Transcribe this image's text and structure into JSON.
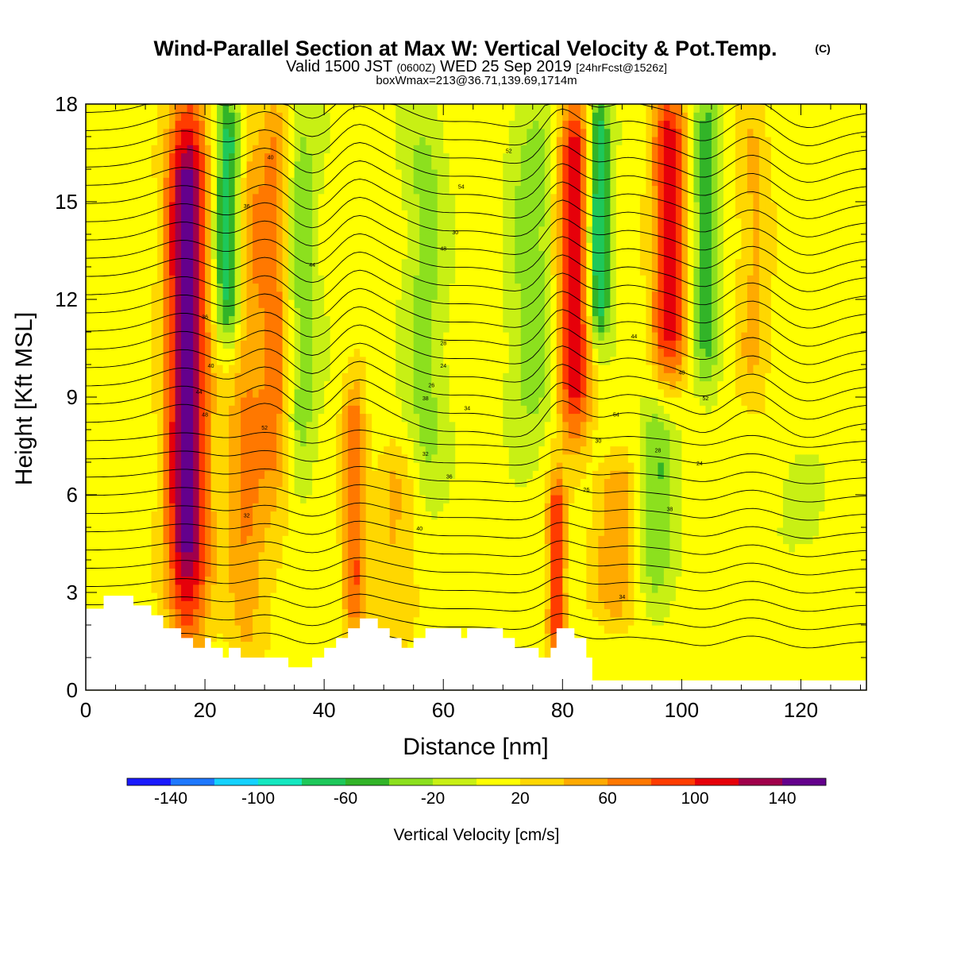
{
  "titles": {
    "main": "Wind-Parallel Section at Max W: Vertical Velocity & Pot.Temp.",
    "copyright": "(C)",
    "valid_prefix": "Valid 1500 JST",
    "valid_utc": "(0600Z)",
    "valid_date": "WED 25 Sep 2019",
    "forecast": "[24hrFcst@1526z]",
    "box": "boxWmax=213@36.71,139.69,1714m"
  },
  "chart_data": {
    "type": "heatmap",
    "xlabel": "Distance [nm]",
    "ylabel": "Height [Kft MSL]",
    "xlim": [
      0,
      131
    ],
    "ylim": [
      0,
      18
    ],
    "x_ticks": [
      "0",
      "20",
      "40",
      "60",
      "80",
      "100",
      "120"
    ],
    "y_ticks": [
      "0",
      "3",
      "6",
      "9",
      "12",
      "15",
      "18"
    ],
    "colorbar": {
      "label": "Vertical Velocity [cm/s]",
      "ticks": [
        "-140",
        "-100",
        "-60",
        "-20",
        "20",
        "60",
        "100",
        "140"
      ],
      "bounds": [
        -160,
        -140,
        -120,
        -100,
        -80,
        -60,
        -40,
        -20,
        0,
        20,
        40,
        60,
        80,
        100,
        120,
        140,
        160
      ],
      "colors": [
        "#1a1aff",
        "#1e78ff",
        "#14d2ff",
        "#14e8c0",
        "#1ec85a",
        "#32b428",
        "#8ce01e",
        "#c8f014",
        "#ffff00",
        "#ffd700",
        "#ffaa00",
        "#ff7800",
        "#ff3c00",
        "#e6000a",
        "#a0004b",
        "#64008c"
      ]
    },
    "updraft_columns": [
      {
        "x": 17,
        "ymin": 2.0,
        "ymax": 18.0,
        "w": 3.5,
        "peak": 150
      },
      {
        "x": 27,
        "ymin": 1.0,
        "ymax": 18.0,
        "w": 3.5,
        "peak": 55
      },
      {
        "x": 32,
        "ymin": 6.0,
        "ymax": 18.0,
        "w": 2.5,
        "peak": 60
      },
      {
        "x": 45,
        "ymin": 2.0,
        "ymax": 9.0,
        "w": 2.0,
        "peak": 70
      },
      {
        "x": 52,
        "ymin": 2.0,
        "ymax": 7.0,
        "w": 4.0,
        "peak": 35
      },
      {
        "x": 79,
        "ymin": 1.5,
        "ymax": 6.0,
        "w": 1.5,
        "peak": 95
      },
      {
        "x": 82,
        "ymin": 8.0,
        "ymax": 18.0,
        "w": 3.0,
        "peak": 110
      },
      {
        "x": 89,
        "ymin": 2.5,
        "ymax": 6.5,
        "w": 3.5,
        "peak": 50
      },
      {
        "x": 98,
        "ymin": 10.0,
        "ymax": 18.0,
        "w": 3.0,
        "peak": 105
      },
      {
        "x": 112,
        "ymin": 9.0,
        "ymax": 18.0,
        "w": 3.0,
        "peak": 35
      }
    ],
    "downdraft_columns": [
      {
        "x": 24,
        "ymin": 11.0,
        "ymax": 18.0,
        "w": 2.5,
        "peak": -100
      },
      {
        "x": 36,
        "ymin": 7.0,
        "ymax": 18.0,
        "w": 3.0,
        "peak": -40
      },
      {
        "x": 57,
        "ymin": 6.0,
        "ymax": 18.0,
        "w": 3.5,
        "peak": -35
      },
      {
        "x": 75,
        "ymin": 8.0,
        "ymax": 18.0,
        "w": 4.0,
        "peak": -40
      },
      {
        "x": 86,
        "ymin": 11.0,
        "ymax": 18.0,
        "w": 2.0,
        "peak": -100
      },
      {
        "x": 96,
        "ymin": 3.0,
        "ymax": 8.5,
        "w": 3.0,
        "peak": -45
      },
      {
        "x": 104,
        "ymin": 10.0,
        "ymax": 18.0,
        "w": 2.5,
        "peak": -60
      },
      {
        "x": 120,
        "ymin": 5.0,
        "ymax": 6.5,
        "w": 3.0,
        "peak": -25
      }
    ],
    "terrain": [
      [
        0,
        2.5
      ],
      [
        3,
        2.5
      ],
      [
        3,
        2.9
      ],
      [
        8,
        2.9
      ],
      [
        8,
        2.6
      ],
      [
        11,
        2.6
      ],
      [
        11,
        2.3
      ],
      [
        13,
        2.3
      ],
      [
        13,
        1.9
      ],
      [
        16,
        1.9
      ],
      [
        16,
        1.6
      ],
      [
        18,
        1.6
      ],
      [
        18,
        1.3
      ],
      [
        20,
        1.3
      ],
      [
        20,
        1.6
      ],
      [
        21,
        1.6
      ],
      [
        21,
        1.3
      ],
      [
        23,
        1.3
      ],
      [
        23,
        1.0
      ],
      [
        24,
        1.0
      ],
      [
        24,
        1.3
      ],
      [
        26,
        1.3
      ],
      [
        26,
        1.0
      ],
      [
        30,
        1.0
      ],
      [
        30,
        1.0
      ],
      [
        34,
        1.0
      ],
      [
        34,
        0.7
      ],
      [
        38,
        0.7
      ],
      [
        38,
        1.0
      ],
      [
        40,
        1.0
      ],
      [
        40,
        1.3
      ],
      [
        42,
        1.3
      ],
      [
        42,
        1.6
      ],
      [
        44,
        1.6
      ],
      [
        44,
        1.9
      ],
      [
        46,
        1.9
      ],
      [
        46,
        2.2
      ],
      [
        49,
        2.2
      ],
      [
        49,
        1.9
      ],
      [
        51,
        1.9
      ],
      [
        51,
        1.6
      ],
      [
        53,
        1.6
      ],
      [
        53,
        1.3
      ],
      [
        55,
        1.3
      ],
      [
        55,
        1.6
      ],
      [
        57,
        1.6
      ],
      [
        57,
        1.9
      ],
      [
        63,
        1.9
      ],
      [
        63,
        1.6
      ],
      [
        64,
        1.6
      ],
      [
        64,
        1.9
      ],
      [
        70,
        1.9
      ],
      [
        70,
        1.6
      ],
      [
        72,
        1.6
      ],
      [
        72,
        1.3
      ],
      [
        76,
        1.3
      ],
      [
        76,
        1.0
      ],
      [
        78,
        1.0
      ],
      [
        78,
        1.3
      ],
      [
        79,
        1.3
      ],
      [
        79,
        1.9
      ],
      [
        82,
        1.9
      ],
      [
        82,
        1.6
      ],
      [
        84,
        1.6
      ],
      [
        84,
        1.0
      ],
      [
        85,
        1.0
      ],
      [
        85,
        0.3
      ],
      [
        131,
        0.3
      ]
    ],
    "theta_contour_labels": [
      "36",
      "40",
      "44",
      "48",
      "52",
      "54",
      "30",
      "28",
      "24",
      "26",
      "38",
      "34",
      "32"
    ]
  }
}
